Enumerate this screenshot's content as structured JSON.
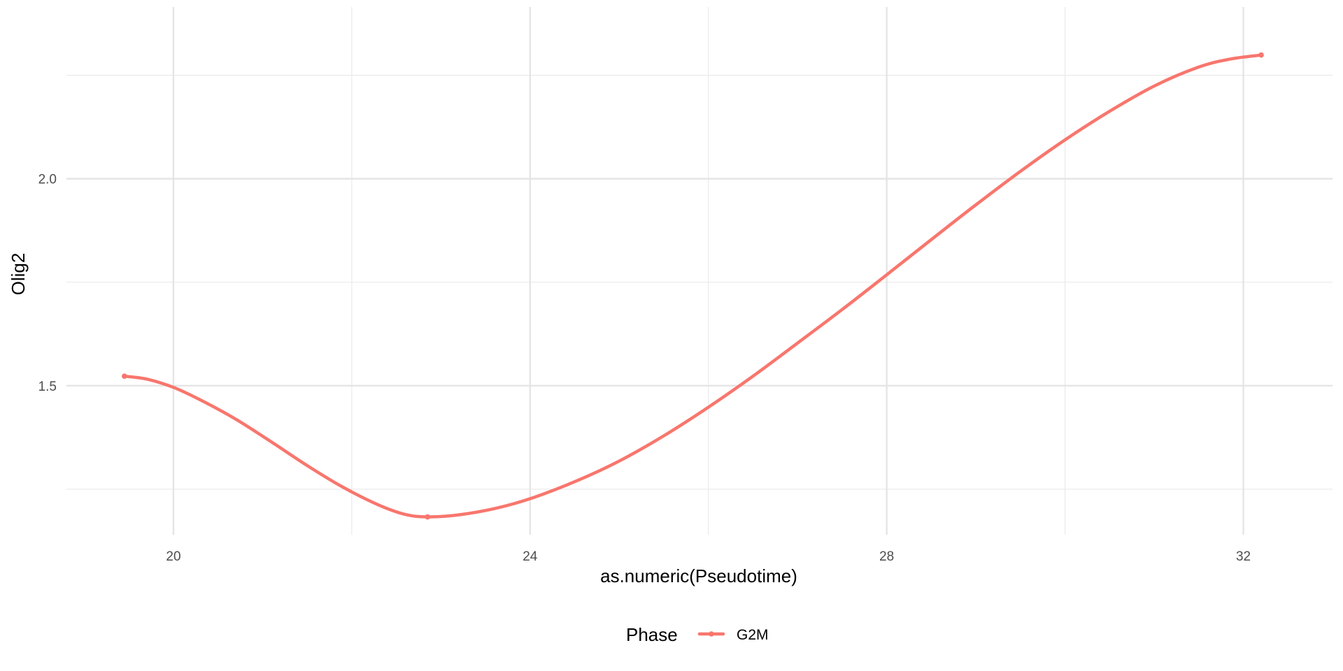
{
  "chart_data": {
    "type": "line",
    "title": "",
    "xlabel": "as.numeric(Pseudotime)",
    "ylabel": "Olig2",
    "xlim": [
      18.8,
      33.0
    ],
    "ylim": [
      1.14,
      2.415
    ],
    "x_ticks": [
      20,
      24,
      28,
      32
    ],
    "x_tick_labels": [
      "20",
      "24",
      "28",
      "32"
    ],
    "x_minor_ticks": [
      22,
      26,
      30
    ],
    "y_ticks": [
      1.5,
      2.0
    ],
    "y_tick_labels": [
      "1.5",
      "2.0"
    ],
    "y_minor_ticks": [
      1.25,
      1.75,
      2.25
    ],
    "grid": true,
    "legend": {
      "title": "Phase",
      "position": "bottom",
      "entries": [
        {
          "label": "G2M",
          "color": "#F8766D"
        }
      ]
    },
    "series": [
      {
        "name": "G2M",
        "color": "#F8766D",
        "x": [
          19.45,
          19.7,
          20.0,
          20.3,
          20.7,
          21.1,
          21.5,
          21.9,
          22.3,
          22.6,
          22.85,
          23.2,
          23.6,
          24.0,
          24.5,
          25.0,
          25.5,
          26.0,
          26.5,
          27.0,
          27.5,
          28.0,
          28.5,
          29.0,
          29.5,
          30.0,
          30.5,
          31.0,
          31.5,
          31.85,
          32.2
        ],
        "y": [
          1.523,
          1.516,
          1.496,
          1.466,
          1.419,
          1.364,
          1.307,
          1.255,
          1.212,
          1.189,
          1.183,
          1.188,
          1.203,
          1.227,
          1.268,
          1.318,
          1.379,
          1.448,
          1.523,
          1.603,
          1.684,
          1.768,
          1.853,
          1.937,
          2.018,
          2.094,
          2.163,
          2.224,
          2.27,
          2.289,
          2.299
        ]
      }
    ]
  }
}
